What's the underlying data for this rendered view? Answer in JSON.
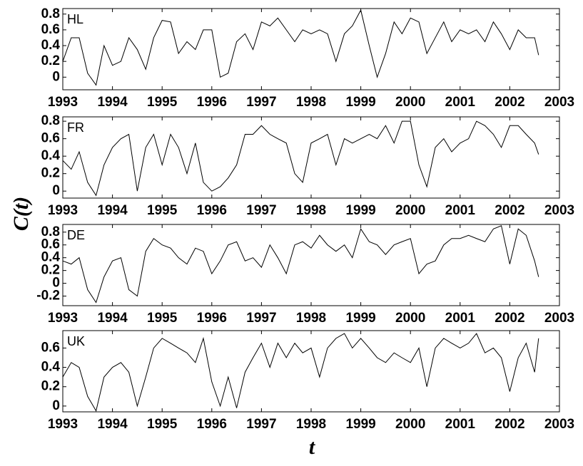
{
  "ylabel": "C(t)",
  "xlabel": "t",
  "chart_data": [
    {
      "type": "line",
      "annotation": "HL",
      "color": "#000000",
      "x": [
        1993,
        1993.17,
        1993.33,
        1993.5,
        1993.67,
        1993.83,
        1994,
        1994.17,
        1994.33,
        1994.5,
        1994.67,
        1994.83,
        1995,
        1995.17,
        1995.33,
        1995.5,
        1995.67,
        1995.83,
        1996,
        1996.17,
        1996.33,
        1996.5,
        1996.67,
        1996.83,
        1997,
        1997.17,
        1997.33,
        1997.5,
        1997.67,
        1997.83,
        1998,
        1998.17,
        1998.33,
        1998.5,
        1998.67,
        1998.83,
        1999,
        1999.17,
        1999.33,
        1999.5,
        1999.67,
        1999.83,
        2000,
        2000.17,
        2000.33,
        2000.5,
        2000.67,
        2000.83,
        2001,
        2001.17,
        2001.33,
        2001.5,
        2001.67,
        2001.83,
        2002,
        2002.17,
        2002.33,
        2002.5,
        2002.58
      ],
      "values": [
        0.2,
        0.5,
        0.5,
        0.05,
        -0.1,
        0.4,
        0.15,
        0.2,
        0.5,
        0.35,
        0.1,
        0.5,
        0.72,
        0.7,
        0.3,
        0.45,
        0.35,
        0.6,
        0.6,
        0.0,
        0.05,
        0.45,
        0.55,
        0.35,
        0.7,
        0.65,
        0.75,
        0.6,
        0.45,
        0.6,
        0.55,
        0.6,
        0.55,
        0.2,
        0.55,
        0.65,
        0.85,
        0.4,
        0.0,
        0.3,
        0.7,
        0.55,
        0.75,
        0.7,
        0.3,
        0.5,
        0.7,
        0.45,
        0.6,
        0.55,
        0.6,
        0.45,
        0.7,
        0.55,
        0.35,
        0.6,
        0.5,
        0.5,
        0.28
      ],
      "xlim": [
        1993,
        2003
      ],
      "xticks": [
        1993,
        1994,
        1995,
        1996,
        1997,
        1998,
        1999,
        2000,
        2001,
        2002,
        2003
      ],
      "ylim": [
        -0.16,
        0.87
      ],
      "yticks": [
        0,
        0.2,
        0.4,
        0.6,
        0.8
      ]
    },
    {
      "type": "line",
      "annotation": "FR",
      "color": "#000000",
      "x": [
        1993,
        1993.17,
        1993.33,
        1993.5,
        1993.67,
        1993.83,
        1994,
        1994.17,
        1994.33,
        1994.5,
        1994.67,
        1994.83,
        1995,
        1995.17,
        1995.33,
        1995.5,
        1995.67,
        1995.83,
        1996,
        1996.17,
        1996.33,
        1996.5,
        1996.67,
        1996.83,
        1997,
        1997.17,
        1997.33,
        1997.5,
        1997.67,
        1997.83,
        1998,
        1998.17,
        1998.33,
        1998.5,
        1998.67,
        1998.83,
        1999,
        1999.17,
        1999.33,
        1999.5,
        1999.67,
        1999.83,
        2000,
        2000.17,
        2000.33,
        2000.5,
        2000.67,
        2000.83,
        2001,
        2001.17,
        2001.33,
        2001.5,
        2001.67,
        2001.83,
        2002,
        2002.17,
        2002.33,
        2002.5,
        2002.58
      ],
      "values": [
        0.35,
        0.25,
        0.45,
        0.1,
        -0.05,
        0.3,
        0.5,
        0.6,
        0.65,
        0.0,
        0.5,
        0.65,
        0.3,
        0.65,
        0.5,
        0.2,
        0.55,
        0.1,
        0.0,
        0.05,
        0.15,
        0.3,
        0.65,
        0.65,
        0.75,
        0.65,
        0.6,
        0.55,
        0.2,
        0.1,
        0.55,
        0.6,
        0.65,
        0.3,
        0.6,
        0.55,
        0.6,
        0.65,
        0.6,
        0.75,
        0.55,
        0.8,
        0.8,
        0.3,
        0.05,
        0.5,
        0.6,
        0.45,
        0.55,
        0.6,
        0.8,
        0.75,
        0.65,
        0.5,
        0.75,
        0.75,
        0.65,
        0.55,
        0.42
      ],
      "xlim": [
        1993,
        2003
      ],
      "xticks": [
        1993,
        1994,
        1995,
        1996,
        1997,
        1998,
        1999,
        2000,
        2001,
        2002,
        2003
      ],
      "ylim": [
        -0.08,
        0.85
      ],
      "yticks": [
        0,
        0.2,
        0.4,
        0.6,
        0.8
      ]
    },
    {
      "type": "line",
      "annotation": "DE",
      "color": "#000000",
      "x": [
        1993,
        1993.17,
        1993.33,
        1993.5,
        1993.67,
        1993.83,
        1994,
        1994.17,
        1994.33,
        1994.5,
        1994.67,
        1994.83,
        1995,
        1995.17,
        1995.33,
        1995.5,
        1995.67,
        1995.83,
        1996,
        1996.17,
        1996.33,
        1996.5,
        1996.67,
        1996.83,
        1997,
        1997.17,
        1997.33,
        1997.5,
        1997.67,
        1997.83,
        1998,
        1998.17,
        1998.33,
        1998.5,
        1998.67,
        1998.83,
        1999,
        1999.17,
        1999.33,
        1999.5,
        1999.67,
        1999.83,
        2000,
        2000.17,
        2000.33,
        2000.5,
        2000.67,
        2000.83,
        2001,
        2001.17,
        2001.33,
        2001.5,
        2001.67,
        2001.83,
        2002,
        2002.17,
        2002.33,
        2002.5,
        2002.58
      ],
      "values": [
        0.35,
        0.3,
        0.4,
        -0.1,
        -0.3,
        0.1,
        0.35,
        0.4,
        -0.1,
        -0.2,
        0.5,
        0.7,
        0.6,
        0.55,
        0.4,
        0.3,
        0.55,
        0.5,
        0.15,
        0.35,
        0.6,
        0.65,
        0.35,
        0.4,
        0.25,
        0.6,
        0.4,
        0.15,
        0.6,
        0.65,
        0.55,
        0.75,
        0.6,
        0.5,
        0.6,
        0.4,
        0.85,
        0.65,
        0.6,
        0.45,
        0.6,
        0.65,
        0.7,
        0.15,
        0.3,
        0.35,
        0.6,
        0.7,
        0.7,
        0.75,
        0.7,
        0.65,
        0.85,
        0.9,
        0.3,
        0.85,
        0.75,
        0.35,
        0.1
      ],
      "xlim": [
        1993,
        2003
      ],
      "xticks": [
        1993,
        1994,
        1995,
        1996,
        1997,
        1998,
        1999,
        2000,
        2001,
        2002,
        2003
      ],
      "ylim": [
        -0.35,
        0.92
      ],
      "yticks": [
        -0.2,
        0,
        0.2,
        0.4,
        0.6,
        0.8
      ]
    },
    {
      "type": "line",
      "annotation": "UK",
      "color": "#000000",
      "x": [
        1993,
        1993.17,
        1993.33,
        1993.5,
        1993.67,
        1993.83,
        1994,
        1994.17,
        1994.33,
        1994.5,
        1994.67,
        1994.83,
        1995,
        1995.17,
        1995.33,
        1995.5,
        1995.67,
        1995.83,
        1996,
        1996.17,
        1996.33,
        1996.5,
        1996.67,
        1996.83,
        1997,
        1997.17,
        1997.33,
        1997.5,
        1997.67,
        1997.83,
        1998,
        1998.17,
        1998.33,
        1998.5,
        1998.67,
        1998.83,
        1999,
        1999.17,
        1999.33,
        1999.5,
        1999.67,
        1999.83,
        2000,
        2000.17,
        2000.33,
        2000.5,
        2000.67,
        2000.83,
        2001,
        2001.17,
        2001.33,
        2001.5,
        2001.67,
        2001.83,
        2002,
        2002.17,
        2002.33,
        2002.5,
        2002.58
      ],
      "values": [
        0.3,
        0.45,
        0.4,
        0.1,
        -0.05,
        0.3,
        0.4,
        0.45,
        0.35,
        0.0,
        0.3,
        0.6,
        0.7,
        0.65,
        0.6,
        0.55,
        0.45,
        0.7,
        0.25,
        0.0,
        0.3,
        -0.02,
        0.35,
        0.5,
        0.65,
        0.4,
        0.65,
        0.5,
        0.65,
        0.55,
        0.6,
        0.3,
        0.6,
        0.7,
        0.75,
        0.6,
        0.7,
        0.6,
        0.5,
        0.45,
        0.55,
        0.5,
        0.45,
        0.6,
        0.2,
        0.6,
        0.7,
        0.65,
        0.6,
        0.65,
        0.75,
        0.55,
        0.6,
        0.5,
        0.15,
        0.5,
        0.65,
        0.35,
        0.7
      ],
      "xlim": [
        1993,
        2003
      ],
      "xticks": [
        1993,
        1994,
        1995,
        1996,
        1997,
        1998,
        1999,
        2000,
        2001,
        2002,
        2003
      ],
      "ylim": [
        -0.06,
        0.78
      ],
      "yticks": [
        0,
        0.2,
        0.4,
        0.6
      ]
    }
  ]
}
